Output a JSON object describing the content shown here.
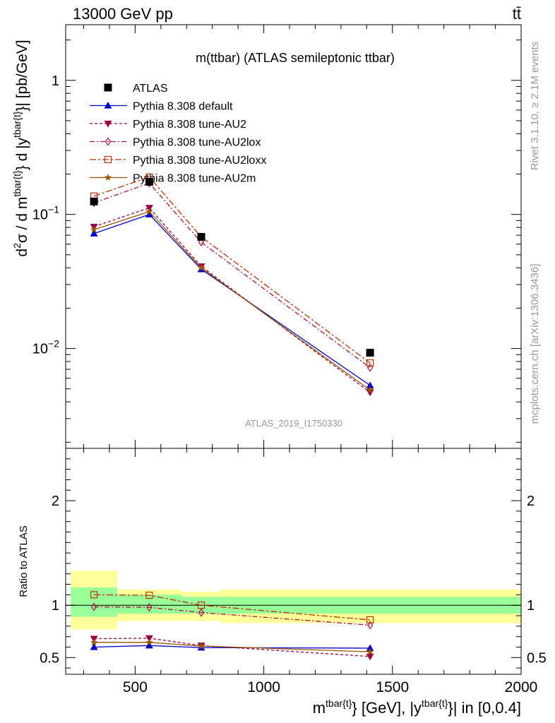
{
  "header": {
    "left": "13000 GeV pp",
    "right": "tt̄"
  },
  "side_labels": {
    "rivet": "Rivet 3.1.10, ≥ 2.1M events",
    "mcplots": "mcplots.cern.ch [arXiv:1306.3436]"
  },
  "chart_data": [
    {
      "type": "line",
      "panel": "main",
      "title": "m(ttbar) (ATLAS semileptonic ttbar)",
      "watermark": "ATLAS_2019_I1750330",
      "ylabel": "d²σ / d m^{tbar{t}} d |y^{tbar{t}}| [pb/GeV]",
      "yscale": "log",
      "ylim": [
        0.0018,
        2.6
      ],
      "xlim": [
        230,
        2000
      ],
      "yticks": [
        {
          "v": 0.01,
          "base": "10",
          "exp": "−2"
        },
        {
          "v": 0.1,
          "base": "10",
          "exp": "−1"
        },
        {
          "v": 1,
          "base": "1",
          "exp": ""
        }
      ],
      "legend_position": "top-left",
      "x": [
        340,
        555,
        757,
        1413
      ],
      "data": {
        "name": "ATLAS",
        "values": [
          0.125,
          0.175,
          0.068,
          0.0093
        ],
        "xerr": [
          [
            250,
            430
          ],
          [
            430,
            680
          ],
          [
            680,
            830
          ],
          [
            830,
            2000
          ]
        ],
        "color": "#000000"
      },
      "series": [
        {
          "name": "Pythia 8.308 default",
          "values": [
            0.072,
            0.1,
            0.039,
            0.0053
          ],
          "color": "#0000cc",
          "dash": "",
          "marker": "triangle-up"
        },
        {
          "name": "Pythia 8.308 tune-AU2",
          "values": [
            0.081,
            0.112,
            0.041,
            0.0047
          ],
          "color": "#990044",
          "dash": "4,3",
          "marker": "triangle-down"
        },
        {
          "name": "Pythia 8.308 tune-AU2lox",
          "values": [
            0.122,
            0.171,
            0.062,
            0.0072
          ],
          "color": "#aa1144",
          "dash": "7,3,2,3",
          "marker": "diamond-open"
        },
        {
          "name": "Pythia 8.308 tune-AU2loxx",
          "values": [
            0.137,
            0.19,
            0.068,
            0.0078
          ],
          "color": "#bb3300",
          "dash": "9,3,3,3",
          "marker": "square-open"
        },
        {
          "name": "Pythia 8.308 tune-AU2m",
          "values": [
            0.077,
            0.105,
            0.04,
            0.0049
          ],
          "color": "#995500",
          "dash": "",
          "marker": "star"
        }
      ]
    },
    {
      "type": "line",
      "panel": "ratio",
      "ylabel": "Ratio to ATLAS",
      "xlabel": "m^{tbar{t}} [GeV], |y^{tbar{t}}| in [0,0.4]",
      "ylim": [
        0.34,
        2.5
      ],
      "xlim": [
        230,
        2000
      ],
      "xticks": [
        500,
        1000,
        1500,
        2000
      ],
      "yticks": [
        0.5,
        1,
        2
      ],
      "bands": [
        {
          "xlo": 250,
          "xhi": 430,
          "inner": [
            0.89,
            1.17
          ],
          "outer": [
            0.77,
            1.33
          ]
        },
        {
          "xlo": 430,
          "xhi": 680,
          "inner": [
            0.92,
            1.1
          ],
          "outer": [
            0.85,
            1.15
          ]
        },
        {
          "xlo": 680,
          "xhi": 830,
          "inner": [
            0.92,
            1.08
          ],
          "outer": [
            0.85,
            1.13
          ]
        },
        {
          "xlo": 830,
          "xhi": 2000,
          "inner": [
            0.92,
            1.08
          ],
          "outer": [
            0.83,
            1.15
          ]
        }
      ],
      "x": [
        340,
        555,
        757,
        1413
      ],
      "series": [
        {
          "name": "Pythia 8.308 default",
          "values": [
            0.6,
            0.615,
            0.595,
            0.59
          ],
          "color": "#0000cc",
          "dash": "",
          "marker": "triangle-up"
        },
        {
          "name": "Pythia 8.308 tune-AU2",
          "values": [
            0.68,
            0.685,
            0.615,
            0.51
          ],
          "color": "#990044",
          "dash": "4,3",
          "marker": "triangle-down"
        },
        {
          "name": "Pythia 8.308 tune-AU2lox",
          "values": [
            0.985,
            0.98,
            0.93,
            0.81
          ],
          "color": "#aa1144",
          "dash": "7,3,2,3",
          "marker": "diamond-open"
        },
        {
          "name": "Pythia 8.308 tune-AU2loxx",
          "values": [
            1.1,
            1.095,
            1.0,
            0.86
          ],
          "color": "#bb3300",
          "dash": "9,3,3,3",
          "marker": "square-open"
        },
        {
          "name": "Pythia 8.308 tune-AU2m",
          "values": [
            0.645,
            0.645,
            0.61,
            0.555
          ],
          "color": "#995500",
          "dash": "",
          "marker": "star"
        }
      ]
    }
  ]
}
